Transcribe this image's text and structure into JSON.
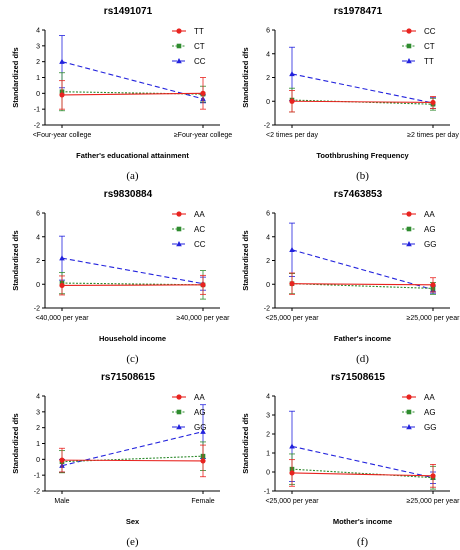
{
  "colors": {
    "series1": "#e8231f",
    "series2": "#2e8b2e",
    "series3": "#2222dd"
  },
  "chart_data": [
    {
      "type": "line",
      "title": "rs1491071",
      "ylabel": "Standardized dfs",
      "xlabel": "Father's educational attainment",
      "panel_label": "(a)",
      "categories": [
        "<Four-year college",
        "≥Four-year college"
      ],
      "ylim": [
        -2,
        4
      ],
      "yticks": [
        -2,
        -1,
        0,
        1,
        2,
        3,
        4
      ],
      "legend_position": "top-right",
      "series": [
        {
          "name": "TT",
          "values": [
            -0.1,
            0.0
          ],
          "errors": [
            0.9,
            1.0
          ]
        },
        {
          "name": "CT",
          "values": [
            0.1,
            -0.05
          ],
          "errors": [
            1.2,
            0.5
          ]
        },
        {
          "name": "CC",
          "values": [
            2.0,
            -0.35
          ],
          "errors": [
            1.65,
            0.25
          ]
        }
      ]
    },
    {
      "type": "line",
      "title": "rs1978471",
      "ylabel": "Standardized dfs",
      "xlabel": "Toothbrushing Frequency",
      "panel_label": "(b)",
      "categories": [
        "<2 times per day",
        "≥2 times per day"
      ],
      "ylim": [
        -2,
        6
      ],
      "yticks": [
        -2,
        0,
        2,
        4,
        6
      ],
      "legend_position": "top-right",
      "series": [
        {
          "name": "CC",
          "values": [
            0.0,
            -0.1
          ],
          "errors": [
            0.9,
            0.5
          ]
        },
        {
          "name": "CT",
          "values": [
            0.1,
            -0.25
          ],
          "errors": [
            1.0,
            0.5
          ]
        },
        {
          "name": "TT",
          "values": [
            2.3,
            -0.15
          ],
          "errors": [
            2.25,
            0.45
          ]
        }
      ]
    },
    {
      "type": "line",
      "title": "rs9830884",
      "ylabel": "Standardized dfs",
      "xlabel": "Household income",
      "panel_label": "(c)",
      "categories": [
        "<40,000 per year",
        "≥40,000 per year"
      ],
      "ylim": [
        -2,
        6
      ],
      "yticks": [
        -2,
        0,
        2,
        4,
        6
      ],
      "legend_position": "top-right",
      "series": [
        {
          "name": "AA",
          "values": [
            -0.1,
            -0.05
          ],
          "errors": [
            0.8,
            0.8
          ]
        },
        {
          "name": "AC",
          "values": [
            0.1,
            -0.05
          ],
          "errors": [
            0.9,
            1.2
          ]
        },
        {
          "name": "CC",
          "values": [
            2.2,
            0.05
          ],
          "errors": [
            1.85,
            0.55
          ]
        }
      ]
    },
    {
      "type": "line",
      "title": "rs7463853",
      "ylabel": "Standardized dfs",
      "xlabel": "Father's income",
      "panel_label": "(d)",
      "categories": [
        "<25,000 per year",
        "≥25,000 per year"
      ],
      "ylim": [
        -2,
        6
      ],
      "yticks": [
        -2,
        0,
        2,
        4,
        6
      ],
      "legend_position": "top-right",
      "series": [
        {
          "name": "AA",
          "values": [
            0.05,
            -0.05
          ],
          "errors": [
            0.9,
            0.6
          ]
        },
        {
          "name": "AG",
          "values": [
            0.05,
            -0.35
          ],
          "errors": [
            0.85,
            0.5
          ]
        },
        {
          "name": "GG",
          "values": [
            2.9,
            -0.45
          ],
          "errors": [
            2.25,
            0.3
          ]
        }
      ]
    },
    {
      "type": "line",
      "title": "rs71508615",
      "ylabel": "Standardized dfs",
      "xlabel": "Sex",
      "panel_label": "(e)",
      "categories": [
        "Male",
        "Female"
      ],
      "ylim": [
        -2,
        4
      ],
      "yticks": [
        -2,
        -1,
        0,
        1,
        2,
        3,
        4
      ],
      "legend_position": "top-right",
      "series": [
        {
          "name": "AA",
          "values": [
            -0.05,
            -0.1
          ],
          "errors": [
            0.75,
            1.0
          ]
        },
        {
          "name": "AG",
          "values": [
            -0.15,
            0.2
          ],
          "errors": [
            0.7,
            0.9
          ]
        },
        {
          "name": "GG",
          "values": [
            -0.4,
            1.75
          ],
          "errors": [
            0.4,
            1.7
          ]
        }
      ]
    },
    {
      "type": "line",
      "title": "rs71508615",
      "ylabel": "Standardized dfs",
      "xlabel": "Mother's income",
      "panel_label": "(f)",
      "categories": [
        "<25,000 per year",
        "≥25,000 per year"
      ],
      "ylim": [
        -1,
        4
      ],
      "yticks": [
        -1,
        0,
        1,
        2,
        3,
        4
      ],
      "legend_position": "top-right",
      "series": [
        {
          "name": "AA",
          "values": [
            -0.05,
            -0.2
          ],
          "errors": [
            0.7,
            0.6
          ]
        },
        {
          "name": "AG",
          "values": [
            0.15,
            -0.3
          ],
          "errors": [
            0.8,
            0.6
          ]
        },
        {
          "name": "GG",
          "values": [
            1.35,
            -0.3
          ],
          "errors": [
            1.85,
            0.3
          ]
        }
      ]
    }
  ]
}
